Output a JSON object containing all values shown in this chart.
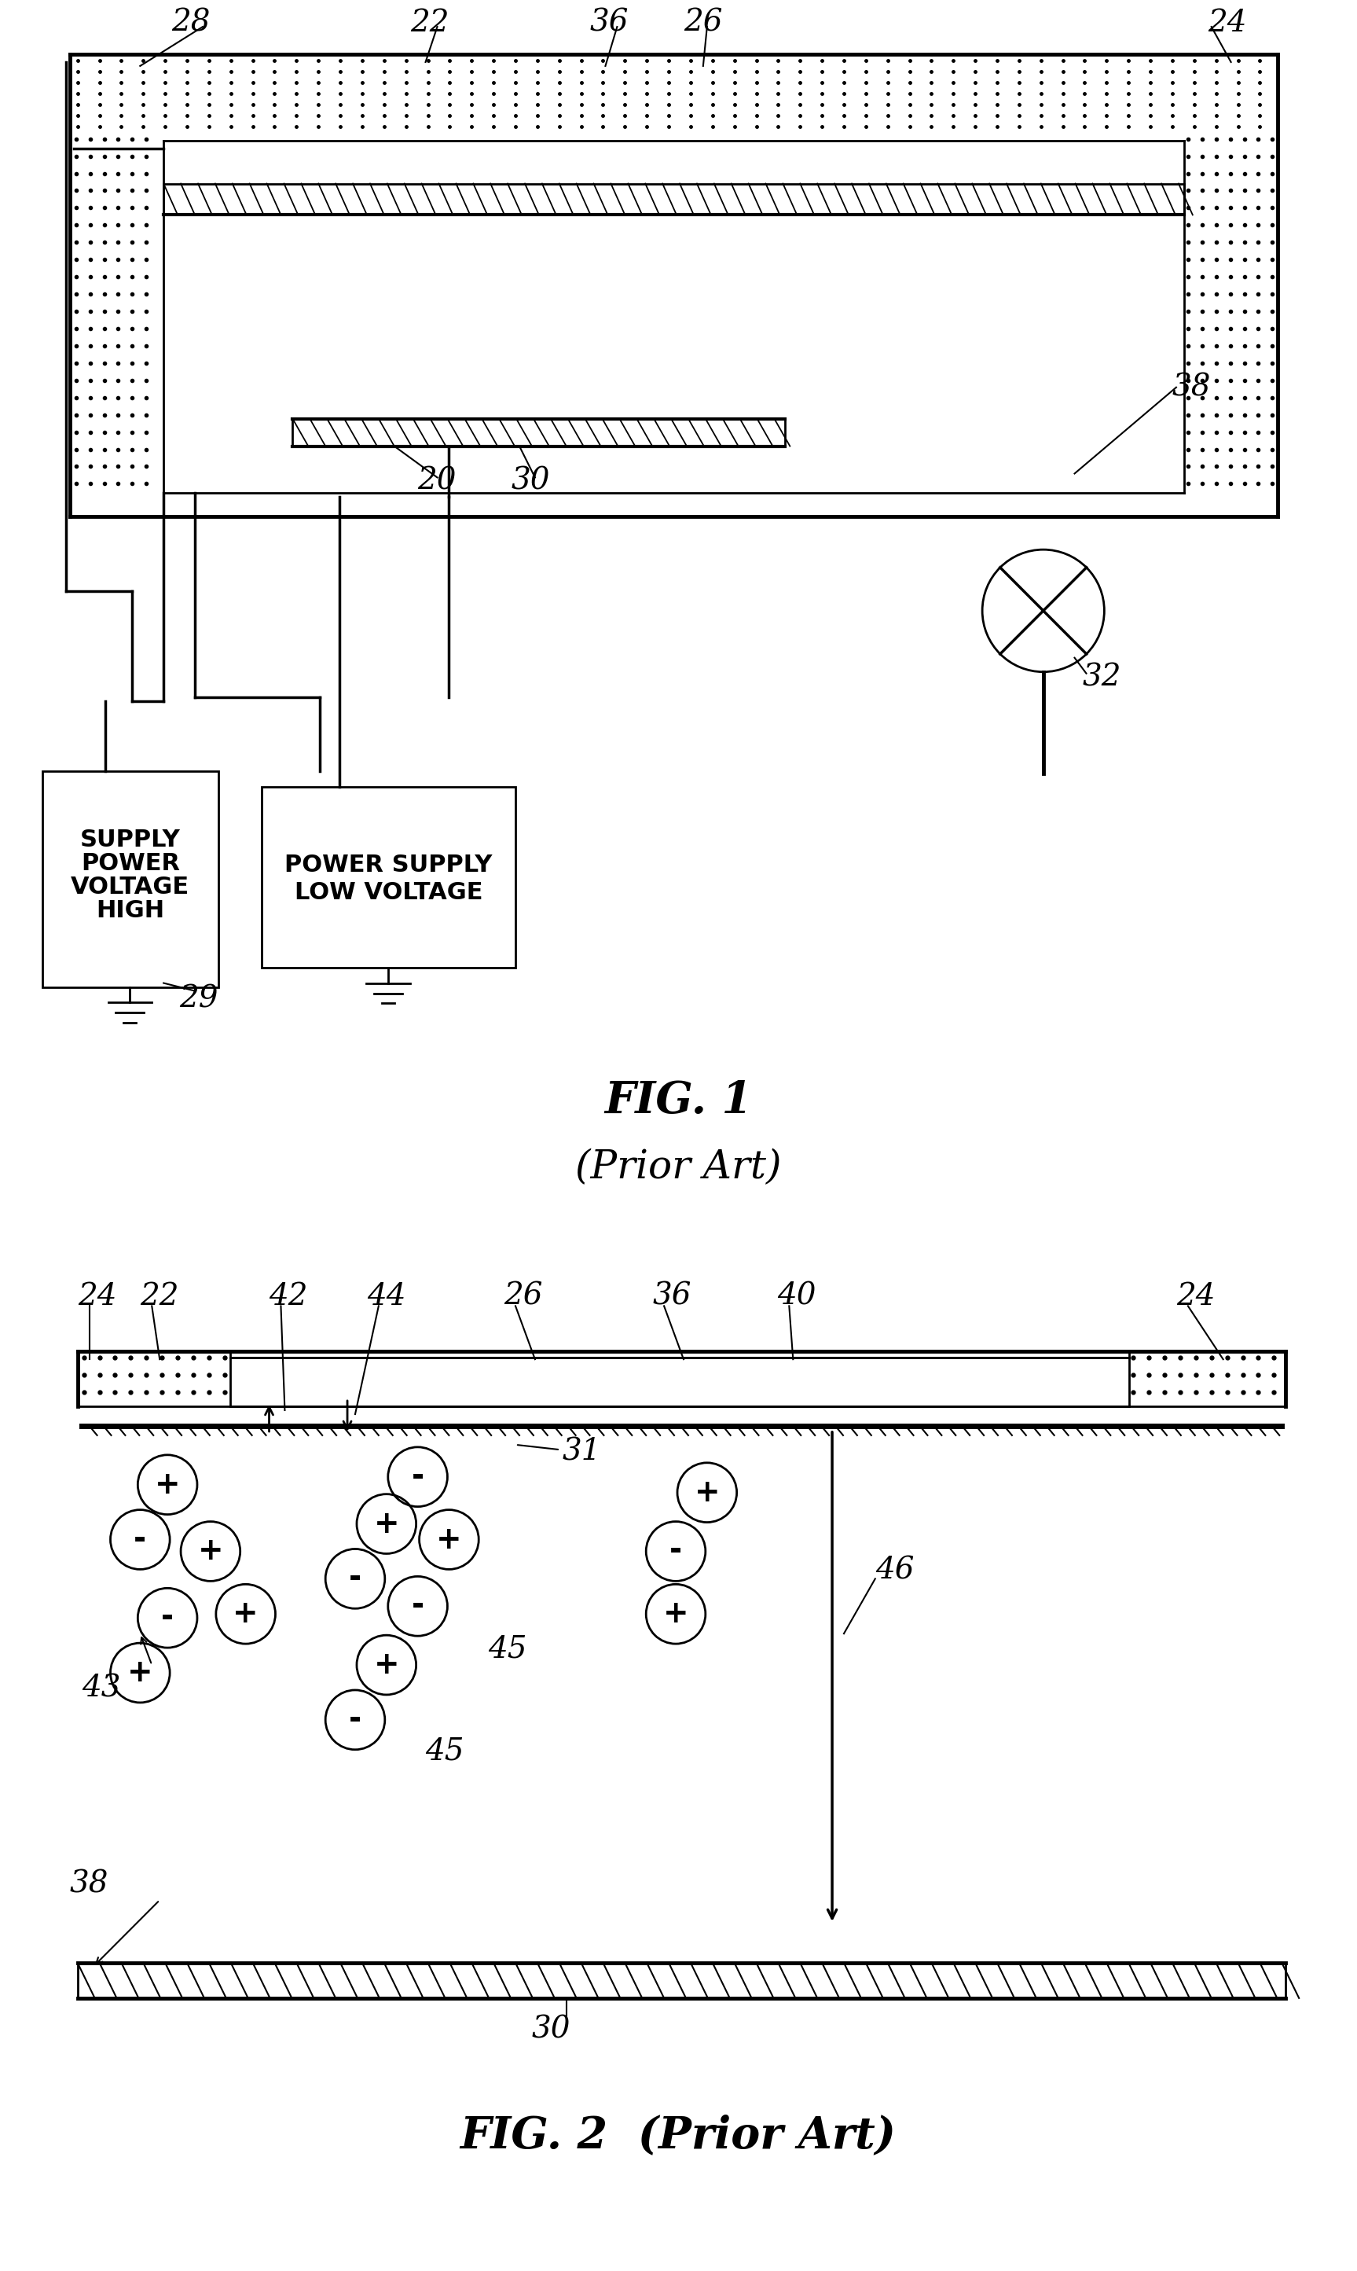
{
  "bg_color": "#ffffff",
  "line_color": "#000000",
  "fig1_title": "FIG. 1",
  "fig1_subtitle": "(Prior Art)",
  "fig2_title": "FIG. 2",
  "fig2_subtitle": "(Prior Art)"
}
